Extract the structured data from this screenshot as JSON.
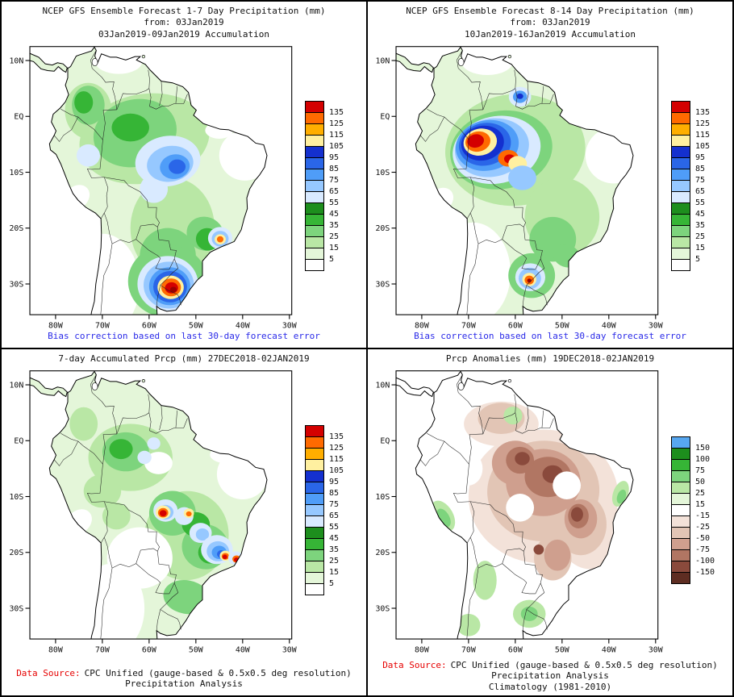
{
  "accent_colors": {
    "caption_blue": "#2929e8",
    "data_source_red": "#e60000",
    "frame_black": "#000000"
  },
  "map_axes": {
    "lat": [
      "10N",
      "EQ",
      "10S",
      "20S",
      "30S"
    ],
    "lon": [
      "80W",
      "70W",
      "60W",
      "50W",
      "40W",
      "30W"
    ]
  },
  "palette": {
    "W": "#ffffff",
    "G1": "#e4f6d9",
    "G2": "#b9e7a5",
    "G3": "#7dd47d",
    "G4": "#36b536",
    "G5": "#1d8e1d",
    "B0": "#d9eaff",
    "B1": "#96c8ff",
    "B2": "#4f9df8",
    "B3": "#2a66e8",
    "B4": "#1430cf",
    "Y": "#fff0a0",
    "YO": "#ffae00",
    "O": "#ff6a00",
    "R": "#d40000",
    "DR": "#9b0000",
    "T1": "#f3e2d9",
    "T2": "#e2c5b5",
    "T3": "#cf9f8e",
    "T4": "#b17663",
    "T5": "#8a4a3c",
    "T6": "#5e2d22",
    "BLU": "#57a7f0"
  },
  "colorbars": {
    "precip": {
      "labels": [
        "135",
        "125",
        "115",
        "105",
        "95",
        "85",
        "75",
        "65",
        "55",
        "45",
        "35",
        "25",
        "15",
        "5"
      ],
      "colors": [
        "#d40000",
        "#ff6a00",
        "#ffae00",
        "#fff0a0",
        "#1430cf",
        "#2a66e8",
        "#4f9df8",
        "#96c8ff",
        "#d9eaff",
        "#1d8e1d",
        "#36b536",
        "#7dd47d",
        "#b9e7a5",
        "#e4f6d9",
        "#ffffff"
      ]
    },
    "anomaly": {
      "labels": [
        "150",
        "100",
        "75",
        "50",
        "25",
        "15",
        "-15",
        "-25",
        "-50",
        "-75",
        "-100",
        "-150"
      ],
      "colors": [
        "#57a7f0",
        "#1d8e1d",
        "#36b536",
        "#7dd47d",
        "#b9e7a5",
        "#e4f6d9",
        "#ffffff",
        "#f3e2d9",
        "#e2c5b5",
        "#cf9f8e",
        "#b17663",
        "#8a4a3c",
        "#5e2d22"
      ]
    }
  },
  "panels": [
    {
      "id": "gfs_1_7",
      "titles": [
        "NCEP GFS Ensemble Forecast 1-7 Day Precipitation (mm)",
        "from: 03Jan2019",
        "03Jan2019-09Jan2019 Accumulation"
      ],
      "caption": {
        "prefix": "",
        "text": "Bias correction based on last 30-day forecast error",
        "line2": "",
        "color": "#2929e8"
      },
      "colorbar": "precip",
      "base": "G1",
      "field": [
        [
          -61,
          -4,
          14,
          8,
          -10,
          "G2"
        ],
        [
          -55,
          -20,
          9,
          9,
          0,
          "G2"
        ],
        [
          -73,
          1,
          5,
          5,
          0,
          "G2"
        ],
        [
          -63,
          -3,
          9,
          6,
          -15,
          "G3"
        ],
        [
          -56,
          -25,
          6,
          5,
          0,
          "G3"
        ],
        [
          -73,
          2,
          3.5,
          3.5,
          0,
          "G3"
        ],
        [
          -48,
          -21,
          4,
          3,
          20,
          "G3"
        ],
        [
          -74,
          2.5,
          2,
          2,
          0,
          "G4"
        ],
        [
          -64,
          -2,
          4,
          2.5,
          0,
          "G4"
        ],
        [
          -47.5,
          -22,
          2.5,
          2,
          20,
          "G4"
        ],
        [
          -39.5,
          -7,
          5.5,
          4.5,
          0,
          "W"
        ],
        [
          -66.5,
          9.8,
          5,
          2.2,
          0,
          "W"
        ],
        [
          -70,
          -30,
          8,
          9,
          0,
          "W"
        ],
        [
          -75.5,
          -14.5,
          3,
          2,
          -40,
          "W"
        ],
        [
          -45,
          -2.5,
          3,
          1.5,
          0,
          "W"
        ],
        [
          -56,
          -8,
          7,
          4.5,
          -10,
          "B0"
        ],
        [
          -59,
          -13,
          3,
          2.5,
          0,
          "B0"
        ],
        [
          -73,
          -7,
          2.5,
          2,
          0,
          "B0"
        ],
        [
          -55.5,
          -8.5,
          5,
          3.2,
          -10,
          "B1"
        ],
        [
          -54.5,
          -9,
          3.2,
          2.2,
          -10,
          "B2"
        ],
        [
          -54,
          -9,
          1.8,
          1.3,
          0,
          "B3"
        ],
        [
          -56,
          -29.5,
          8.5,
          6.5,
          0,
          "G3"
        ],
        [
          -56,
          -30,
          6.5,
          5,
          0,
          "B0"
        ],
        [
          -55.8,
          -30.2,
          5.4,
          4.2,
          0,
          "B1"
        ],
        [
          -55.6,
          -30.4,
          4.4,
          3.4,
          0,
          "B2"
        ],
        [
          -55.5,
          -30.5,
          3.6,
          2.8,
          0,
          "B3"
        ],
        [
          -55.4,
          -30.6,
          2.8,
          2.1,
          0,
          "Y"
        ],
        [
          -55.3,
          -30.6,
          2.1,
          1.6,
          0,
          "O"
        ],
        [
          -55.2,
          -30.7,
          1.4,
          1.0,
          0,
          "R"
        ],
        [
          -54.8,
          -31.0,
          0.7,
          0.5,
          0,
          "DR"
        ],
        [
          -44.8,
          -21.8,
          2.6,
          2,
          0,
          "B0"
        ],
        [
          -44.8,
          -21.9,
          1.8,
          1.4,
          0,
          "B1"
        ],
        [
          -44.8,
          -22,
          1.2,
          0.9,
          0,
          "Y"
        ],
        [
          -44.8,
          -22,
          0.7,
          0.55,
          0,
          "O"
        ]
      ]
    },
    {
      "id": "gfs_8_14",
      "titles": [
        "NCEP GFS Ensemble Forecast 8-14 Day Precipitation (mm)",
        "from: 03Jan2019",
        "10Jan2019-16Jan2019 Accumulation"
      ],
      "caption": {
        "prefix": "",
        "text": "Bias correction based on last 30-day forecast error",
        "line2": "",
        "color": "#2929e8"
      },
      "colorbar": "precip",
      "base": "G1",
      "field": [
        [
          -60,
          -6,
          15,
          10,
          -5,
          "G2"
        ],
        [
          -50,
          -18,
          8,
          7,
          0,
          "G2"
        ],
        [
          -63,
          -6,
          11,
          7,
          -10,
          "G3"
        ],
        [
          -52,
          -22,
          5,
          4,
          0,
          "G3"
        ],
        [
          -49,
          -25,
          3,
          2,
          20,
          "G3"
        ],
        [
          -39,
          -7,
          6,
          5,
          0,
          "W"
        ],
        [
          -66,
          9.8,
          5.5,
          2.4,
          0,
          "W"
        ],
        [
          -69,
          -28,
          8,
          9,
          0,
          "W"
        ],
        [
          -76,
          -15,
          3,
          2,
          -40,
          "W"
        ],
        [
          -64,
          -6,
          9.5,
          6,
          -12,
          "B0"
        ],
        [
          -65,
          -5.6,
          8,
          5.2,
          -12,
          "B1"
        ],
        [
          -66,
          -5.2,
          6.8,
          4.5,
          -12,
          "B2"
        ],
        [
          -66.5,
          -5,
          5.6,
          3.8,
          -12,
          "B3"
        ],
        [
          -67,
          -4.8,
          4.6,
          3.1,
          -12,
          "B4"
        ],
        [
          -67.5,
          -4.6,
          3.6,
          2.4,
          -12,
          "Y"
        ],
        [
          -68,
          -4.5,
          2.7,
          1.8,
          -12,
          "O"
        ],
        [
          -68.5,
          -4.4,
          1.8,
          1.2,
          -12,
          "R"
        ],
        [
          -61.5,
          -7.5,
          2.2,
          1.5,
          0,
          "O"
        ],
        [
          -61.2,
          -7.6,
          1.2,
          0.8,
          0,
          "R"
        ],
        [
          -59.5,
          -8.5,
          2,
          1.4,
          0,
          "Y"
        ],
        [
          -58.5,
          -11,
          3,
          2.2,
          0,
          "B1"
        ],
        [
          -59,
          3.5,
          2.4,
          1.8,
          0,
          "B0"
        ],
        [
          -59,
          3.5,
          1.5,
          1.1,
          0,
          "B2"
        ],
        [
          -59,
          3.6,
          0.7,
          0.5,
          0,
          "B4"
        ],
        [
          -56.5,
          -28.5,
          5,
          4,
          0,
          "G3"
        ],
        [
          -56.8,
          -28.8,
          3.2,
          2.5,
          0,
          "B0"
        ],
        [
          -56.9,
          -29,
          2.4,
          1.9,
          0,
          "B1"
        ],
        [
          -57,
          -29.2,
          1.5,
          1.2,
          0,
          "Y"
        ],
        [
          -57,
          -29.3,
          1,
          0.8,
          0,
          "O"
        ],
        [
          -57,
          -29.4,
          0.45,
          0.35,
          0,
          "DR"
        ]
      ]
    },
    {
      "id": "obs_7day",
      "titles": [
        "7-day Accumulated Prcp (mm) 27DEC2018-02JAN2019"
      ],
      "caption": {
        "prefix": "Data Source:",
        "text": "CPC Unified (gauge-based & 0.5x0.5 deg resolution) Precipitation Analysis",
        "line2": "",
        "color": "#111111"
      },
      "colorbar": "precip",
      "base": "G1",
      "field": [
        [
          -64,
          -3,
          9,
          6,
          0,
          "G2"
        ],
        [
          -52,
          -17,
          9,
          8,
          10,
          "G2"
        ],
        [
          -70,
          -9,
          4,
          3,
          0,
          "G2"
        ],
        [
          -74,
          3,
          3,
          3,
          0,
          "G2"
        ],
        [
          -67,
          -13.5,
          3,
          2.4,
          0,
          "G2"
        ],
        [
          -65,
          -2,
          5,
          3.5,
          0,
          "G3"
        ],
        [
          -55,
          -13,
          5,
          4,
          0,
          "G3"
        ],
        [
          -48,
          -19,
          5,
          4,
          15,
          "G3"
        ],
        [
          -52,
          -28,
          5,
          3,
          10,
          "G3"
        ],
        [
          -66,
          -1.5,
          2.5,
          1.8,
          0,
          "G4"
        ],
        [
          -50,
          -15,
          3,
          2.2,
          0,
          "G4"
        ],
        [
          -47,
          -20,
          2.5,
          2,
          0,
          "G4"
        ],
        [
          -40,
          -6,
          5.5,
          4.5,
          0,
          "W"
        ],
        [
          -43,
          -2.5,
          4,
          1.6,
          0,
          "W"
        ],
        [
          -62,
          -21,
          7,
          5.5,
          0,
          "W"
        ],
        [
          -68,
          -30,
          7,
          8,
          0,
          "W"
        ],
        [
          -58,
          -4,
          3,
          2,
          0,
          "W"
        ],
        [
          -75,
          -14.5,
          3,
          2,
          -40,
          "W"
        ],
        [
          -56.5,
          -12.5,
          2.6,
          2,
          0,
          "B0"
        ],
        [
          -56.5,
          -12.8,
          1.7,
          1.3,
          0,
          "B1"
        ],
        [
          -52.5,
          -13.5,
          2,
          1.6,
          0,
          "B0"
        ],
        [
          -49,
          -16.5,
          2.4,
          1.8,
          0,
          "B0"
        ],
        [
          -48.6,
          -16.8,
          1.4,
          1.1,
          0,
          "B1"
        ],
        [
          -45.5,
          -19.5,
          3.4,
          2.6,
          0,
          "B0"
        ],
        [
          -45.3,
          -19.8,
          2.4,
          1.8,
          0,
          "B1"
        ],
        [
          -45,
          -20,
          1.6,
          1.2,
          0,
          "B2"
        ],
        [
          -44.6,
          -20.3,
          0.9,
          0.7,
          0,
          "B3"
        ],
        [
          -61,
          -3,
          1.5,
          1.2,
          0,
          "B0"
        ],
        [
          -59,
          -0.5,
          1.4,
          1.1,
          0,
          "B0"
        ],
        [
          -57,
          -12.8,
          1.6,
          1.2,
          0,
          "Y"
        ],
        [
          -57,
          -12.9,
          1.1,
          0.85,
          0,
          "O"
        ],
        [
          -57,
          -13,
          0.75,
          0.55,
          0,
          "R"
        ],
        [
          -51.5,
          -13,
          1.1,
          0.85,
          0,
          "Y"
        ],
        [
          -51.5,
          -13.1,
          0.6,
          0.45,
          0,
          "O"
        ],
        [
          -43.7,
          -20.6,
          1.2,
          0.9,
          0,
          "Y"
        ],
        [
          -43.7,
          -20.7,
          0.8,
          0.6,
          0,
          "O"
        ],
        [
          -43.8,
          -20.8,
          0.5,
          0.4,
          0,
          "R"
        ],
        [
          -41.5,
          -21,
          1.6,
          1.2,
          0,
          "B0"
        ],
        [
          -41.3,
          -21.2,
          0.9,
          0.65,
          0,
          "O"
        ],
        [
          -41.3,
          -21.3,
          0.55,
          0.4,
          0,
          "R"
        ]
      ]
    },
    {
      "id": "anom",
      "titles": [
        "Prcp Anomalies (mm) 19DEC2018-02JAN2019"
      ],
      "caption": {
        "prefix": "Data Source:",
        "text": "CPC Unified (gauge-based & 0.5x0.5 deg resolution) Precipitation Analysis",
        "line2": "Climatology (1981-2010)",
        "color": "#111111"
      },
      "colorbar": "anomaly",
      "base": "W",
      "field": [
        [
          -54,
          -10,
          16,
          12,
          0,
          "T1"
        ],
        [
          -63,
          3,
          8,
          4,
          0,
          "T1"
        ],
        [
          -44,
          -16,
          7,
          7,
          0,
          "T1"
        ],
        [
          -54,
          -9,
          12,
          9,
          -5,
          "T2"
        ],
        [
          -63,
          4,
          5,
          2.8,
          0,
          "T2"
        ],
        [
          -46,
          -15,
          5.5,
          5.5,
          0,
          "T2"
        ],
        [
          -52,
          -21,
          4,
          4,
          0,
          "T2"
        ],
        [
          -54,
          -7.5,
          8,
          6,
          0,
          "T3"
        ],
        [
          -60,
          -4,
          5,
          4,
          0,
          "T3"
        ],
        [
          -46,
          -14,
          3.5,
          3.5,
          0,
          "T3"
        ],
        [
          -51,
          -20.5,
          2.8,
          2.8,
          0,
          "T3"
        ],
        [
          -53,
          -6.5,
          5,
          3.6,
          0,
          "T4"
        ],
        [
          -59,
          -3.5,
          3,
          2.4,
          0,
          "T4"
        ],
        [
          -46.5,
          -13.5,
          2.2,
          2.2,
          0,
          "T4"
        ],
        [
          -52,
          -6,
          2.2,
          1.6,
          0,
          "T5"
        ],
        [
          -58.5,
          -3.2,
          1.6,
          1.2,
          0,
          "T5"
        ],
        [
          -46.8,
          -13.2,
          1.3,
          1.3,
          0,
          "T5"
        ],
        [
          -55,
          -19.5,
          1.1,
          0.9,
          0,
          "T5"
        ],
        [
          -59,
          -12,
          3,
          2.5,
          0,
          "W"
        ],
        [
          -49,
          -8,
          3,
          2.5,
          0,
          "W"
        ],
        [
          -70,
          -5,
          3,
          3,
          0,
          "W"
        ],
        [
          -75.5,
          -13.5,
          2.2,
          3,
          -30,
          "G2"
        ],
        [
          -75.3,
          -13.8,
          1.2,
          1.8,
          -30,
          "G3"
        ],
        [
          -66.5,
          -25,
          2.5,
          3.5,
          0,
          "G2"
        ],
        [
          -57,
          -31,
          3.5,
          2.5,
          0,
          "G2"
        ],
        [
          -57,
          -31,
          1.8,
          1.3,
          0,
          "G3"
        ],
        [
          -60.5,
          4.5,
          2,
          1.6,
          0,
          "G2"
        ],
        [
          -37.5,
          -9.5,
          1.6,
          2.4,
          20,
          "G2"
        ],
        [
          -37.3,
          -10,
          0.9,
          1.3,
          20,
          "G3"
        ],
        [
          -70,
          -33,
          2.5,
          2,
          0,
          "G2"
        ]
      ]
    }
  ]
}
